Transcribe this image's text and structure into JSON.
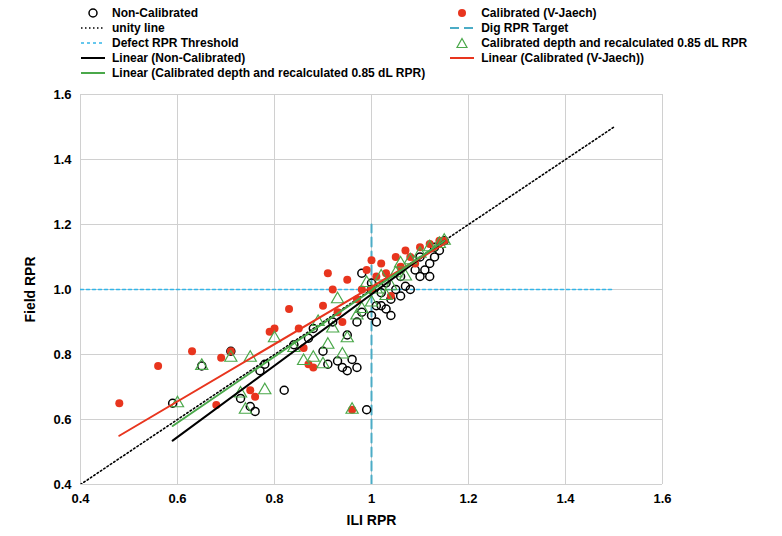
{
  "chart_data": {
    "type": "scatter",
    "x_label": "ILI RPR",
    "y_label": "Field RPR",
    "xlim": [
      0.4,
      1.6
    ],
    "ylim": [
      0.4,
      1.6
    ],
    "xticks": [
      0.4,
      0.6,
      0.8,
      1,
      1.2,
      1.4,
      1.6
    ],
    "yticks": [
      {
        "value": 0.4,
        "label": "0.4"
      },
      {
        "value": 0.6,
        "label": "0.6"
      },
      {
        "value": 0.8,
        "label": "0.8"
      },
      {
        "value": 1,
        "label": "1.0"
      },
      {
        "value": 1.2,
        "label": "1.2"
      },
      {
        "value": 1.4,
        "label": "1.4"
      },
      {
        "value": 1.6,
        "label": "1.6"
      }
    ],
    "grid": true,
    "legend": "top-left",
    "series": [
      {
        "name": "Non-Calibrated",
        "type": "scatter",
        "marker": "circle-open",
        "color": "#000000",
        "x": [
          0.59,
          0.65,
          0.71,
          0.73,
          0.75,
          0.76,
          0.77,
          0.78,
          0.82,
          0.84,
          0.87,
          0.88,
          0.9,
          0.91,
          0.93,
          0.94,
          0.95,
          0.96,
          0.97,
          0.99,
          0.92,
          0.95,
          0.97,
          0.98,
          1.0,
          1.01,
          1.02,
          1.02,
          1.03,
          1.04,
          1.05,
          1.06,
          1.07,
          1.08,
          1.1,
          1.11,
          1.12,
          1.13,
          1.14,
          1.15,
          0.98,
          1.0,
          1.03,
          1.09,
          1.12,
          1.0,
          1.04,
          1.01,
          1.06,
          1.1,
          1.13
        ],
        "values": [
          0.65,
          0.765,
          0.81,
          0.665,
          0.64,
          0.625,
          0.75,
          0.77,
          0.69,
          0.83,
          0.85,
          0.88,
          0.81,
          0.77,
          0.78,
          0.76,
          0.75,
          0.785,
          0.76,
          0.63,
          0.9,
          0.86,
          0.9,
          0.93,
          0.92,
          0.9,
          0.95,
          0.99,
          0.94,
          0.97,
          1.0,
          0.98,
          1.01,
          1.0,
          1.04,
          1.06,
          1.08,
          1.1,
          1.12,
          1.15,
          1.05,
          1.0,
          1.02,
          1.06,
          1.04,
          1.02,
          0.92,
          0.95,
          1.04,
          1.1,
          1.13
        ]
      },
      {
        "name": "Calibrated (V-Jaech)",
        "type": "scatter",
        "marker": "circle",
        "color": "#e8351e",
        "x": [
          0.48,
          0.56,
          0.63,
          0.68,
          0.69,
          0.71,
          0.75,
          0.76,
          0.79,
          0.8,
          0.83,
          0.85,
          0.87,
          0.88,
          0.9,
          0.91,
          0.93,
          0.95,
          0.96,
          0.97,
          0.99,
          1.0,
          1.02,
          1.03,
          1.05,
          1.07,
          1.08,
          1.1,
          1.12,
          1.14,
          1.15,
          1.0,
          0.98,
          1.04,
          0.94,
          0.86,
          1.06,
          1.01,
          0.92,
          1.09
        ],
        "values": [
          0.65,
          0.765,
          0.81,
          0.645,
          0.79,
          0.81,
          0.69,
          0.67,
          0.87,
          0.88,
          0.94,
          0.88,
          0.77,
          0.76,
          0.95,
          1.05,
          0.93,
          1.03,
          0.63,
          0.97,
          1.06,
          1.0,
          1.08,
          1.05,
          1.1,
          1.12,
          1.1,
          1.13,
          1.14,
          1.15,
          1.15,
          1.09,
          1.0,
          0.98,
          0.9,
          0.82,
          1.07,
          1.04,
          1.0,
          1.08
        ]
      },
      {
        "name": "unity line",
        "type": "line",
        "line_style": "dotted",
        "color": "#000000",
        "x": [
          0.4,
          1.5
        ],
        "values": [
          0.4,
          1.5
        ]
      },
      {
        "name": "Dig RPR Target",
        "type": "line",
        "line_style": "dashed",
        "color": "#4bacc6",
        "x": [
          1.0,
          1.0
        ],
        "values": [
          0.4,
          1.2
        ]
      },
      {
        "name": "Defect RPR Threshold",
        "type": "line",
        "line_style": "dotted",
        "color": "#33b5e8",
        "x": [
          0.4,
          1.5
        ],
        "values": [
          1.0,
          1.0
        ]
      },
      {
        "name": "Calibrated depth and recalculated 0.85 dL RPR",
        "type": "scatter",
        "marker": "triangle-open",
        "color": "#4aa84a",
        "x": [
          0.6,
          0.65,
          0.71,
          0.73,
          0.74,
          0.75,
          0.78,
          0.8,
          0.84,
          0.86,
          0.88,
          0.9,
          0.91,
          0.92,
          0.94,
          0.96,
          0.97,
          0.98,
          1.0,
          1.01,
          1.02,
          1.03,
          1.05,
          1.06,
          1.08,
          1.1,
          1.12,
          1.14,
          1.15,
          0.95,
          0.99,
          1.04,
          0.93,
          1.07,
          0.89
        ],
        "values": [
          0.65,
          0.765,
          0.79,
          0.68,
          0.63,
          0.79,
          0.69,
          0.85,
          0.82,
          0.78,
          0.79,
          0.77,
          0.83,
          0.88,
          0.8,
          0.63,
          0.92,
          0.94,
          0.96,
          1.0,
          1.04,
          0.98,
          1.05,
          1.08,
          1.09,
          1.11,
          1.13,
          1.14,
          1.15,
          0.85,
          1.02,
          1.01,
          0.97,
          1.04,
          0.9
        ]
      },
      {
        "name": "Linear (Non-Calibrated)",
        "type": "line",
        "line_style": "solid",
        "color": "#000000",
        "x": [
          0.59,
          1.15
        ],
        "values": [
          0.535,
          1.15
        ]
      },
      {
        "name": "Linear (Calibrated (V-Jaech))",
        "type": "line",
        "line_style": "solid",
        "color": "#e8351e",
        "x": [
          0.48,
          1.15
        ],
        "values": [
          0.55,
          1.14
        ]
      },
      {
        "name": "Linear (Calibrated depth and recalculated 0.85 dL RPR)",
        "type": "line",
        "line_style": "solid",
        "color": "#4aa84a",
        "x": [
          0.59,
          1.15
        ],
        "values": [
          0.58,
          1.15
        ]
      }
    ]
  }
}
